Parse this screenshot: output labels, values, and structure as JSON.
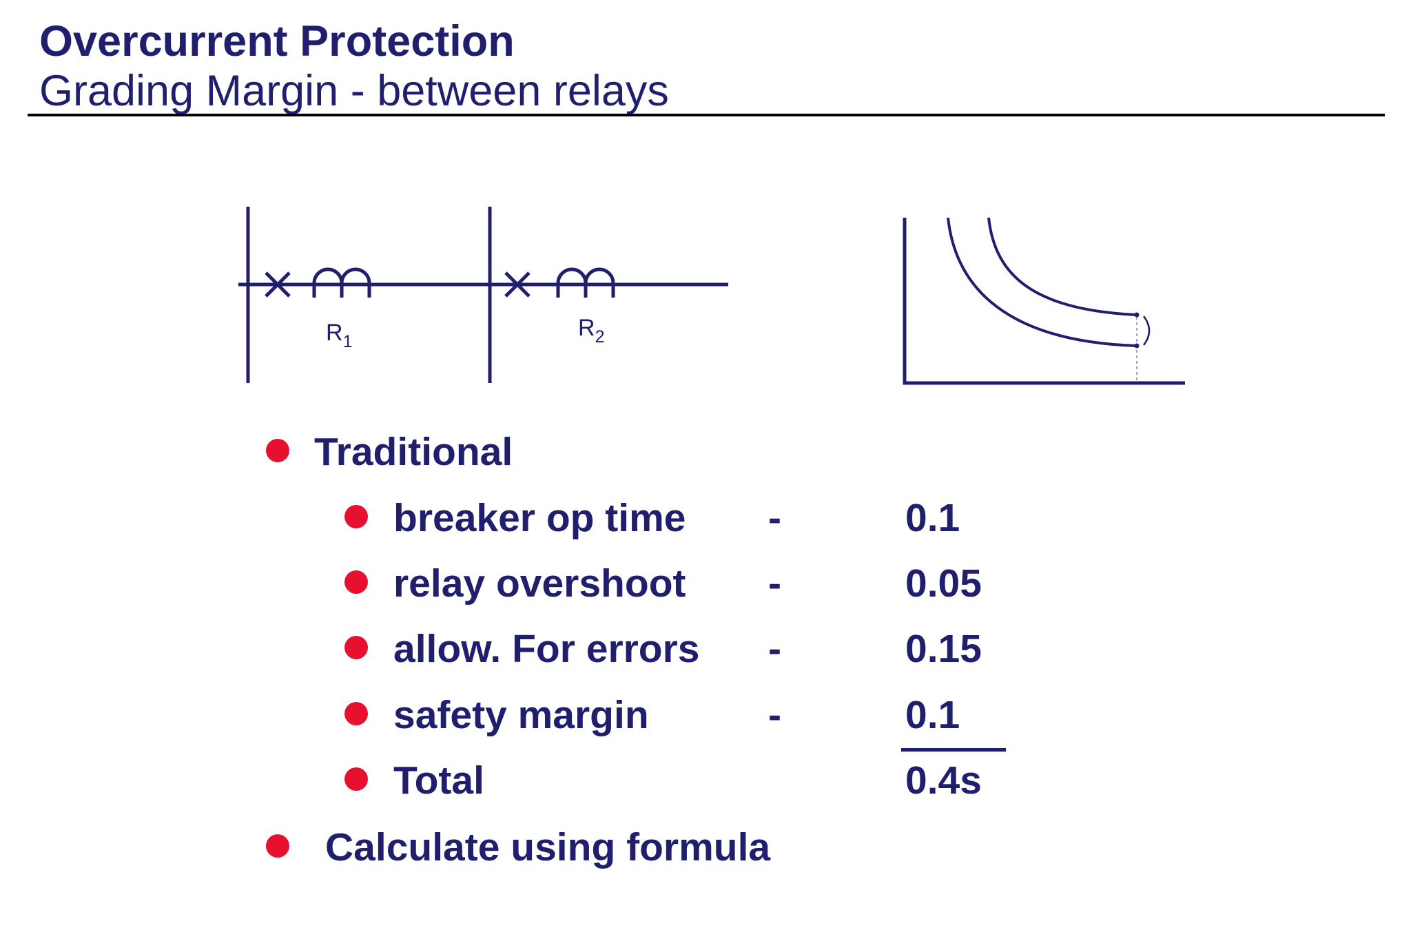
{
  "slide": {
    "title": "Overcurrent Protection",
    "subtitle": "Grading Margin - between relays"
  },
  "diagram": {
    "relay1": {
      "letter": "R",
      "sub": "1"
    },
    "relay2": {
      "letter": "R",
      "sub": "2"
    }
  },
  "list": {
    "traditional": "Traditional",
    "items": [
      {
        "label": "breaker op time",
        "dash": "-",
        "value": "0.1"
      },
      {
        "label": "relay overshoot",
        "dash": "-",
        "value": "0.05"
      },
      {
        "label": "allow. For errors",
        "dash": "-",
        "value": "0.15"
      },
      {
        "label": "safety margin",
        "dash": "-",
        "value": "0.1"
      }
    ],
    "total": {
      "label": "Total",
      "value": "0.4s"
    },
    "formula": "Calculate using formula"
  },
  "colors": {
    "text": "#1f1f6e",
    "bullet": "#e8102f",
    "rule": "#000000"
  }
}
